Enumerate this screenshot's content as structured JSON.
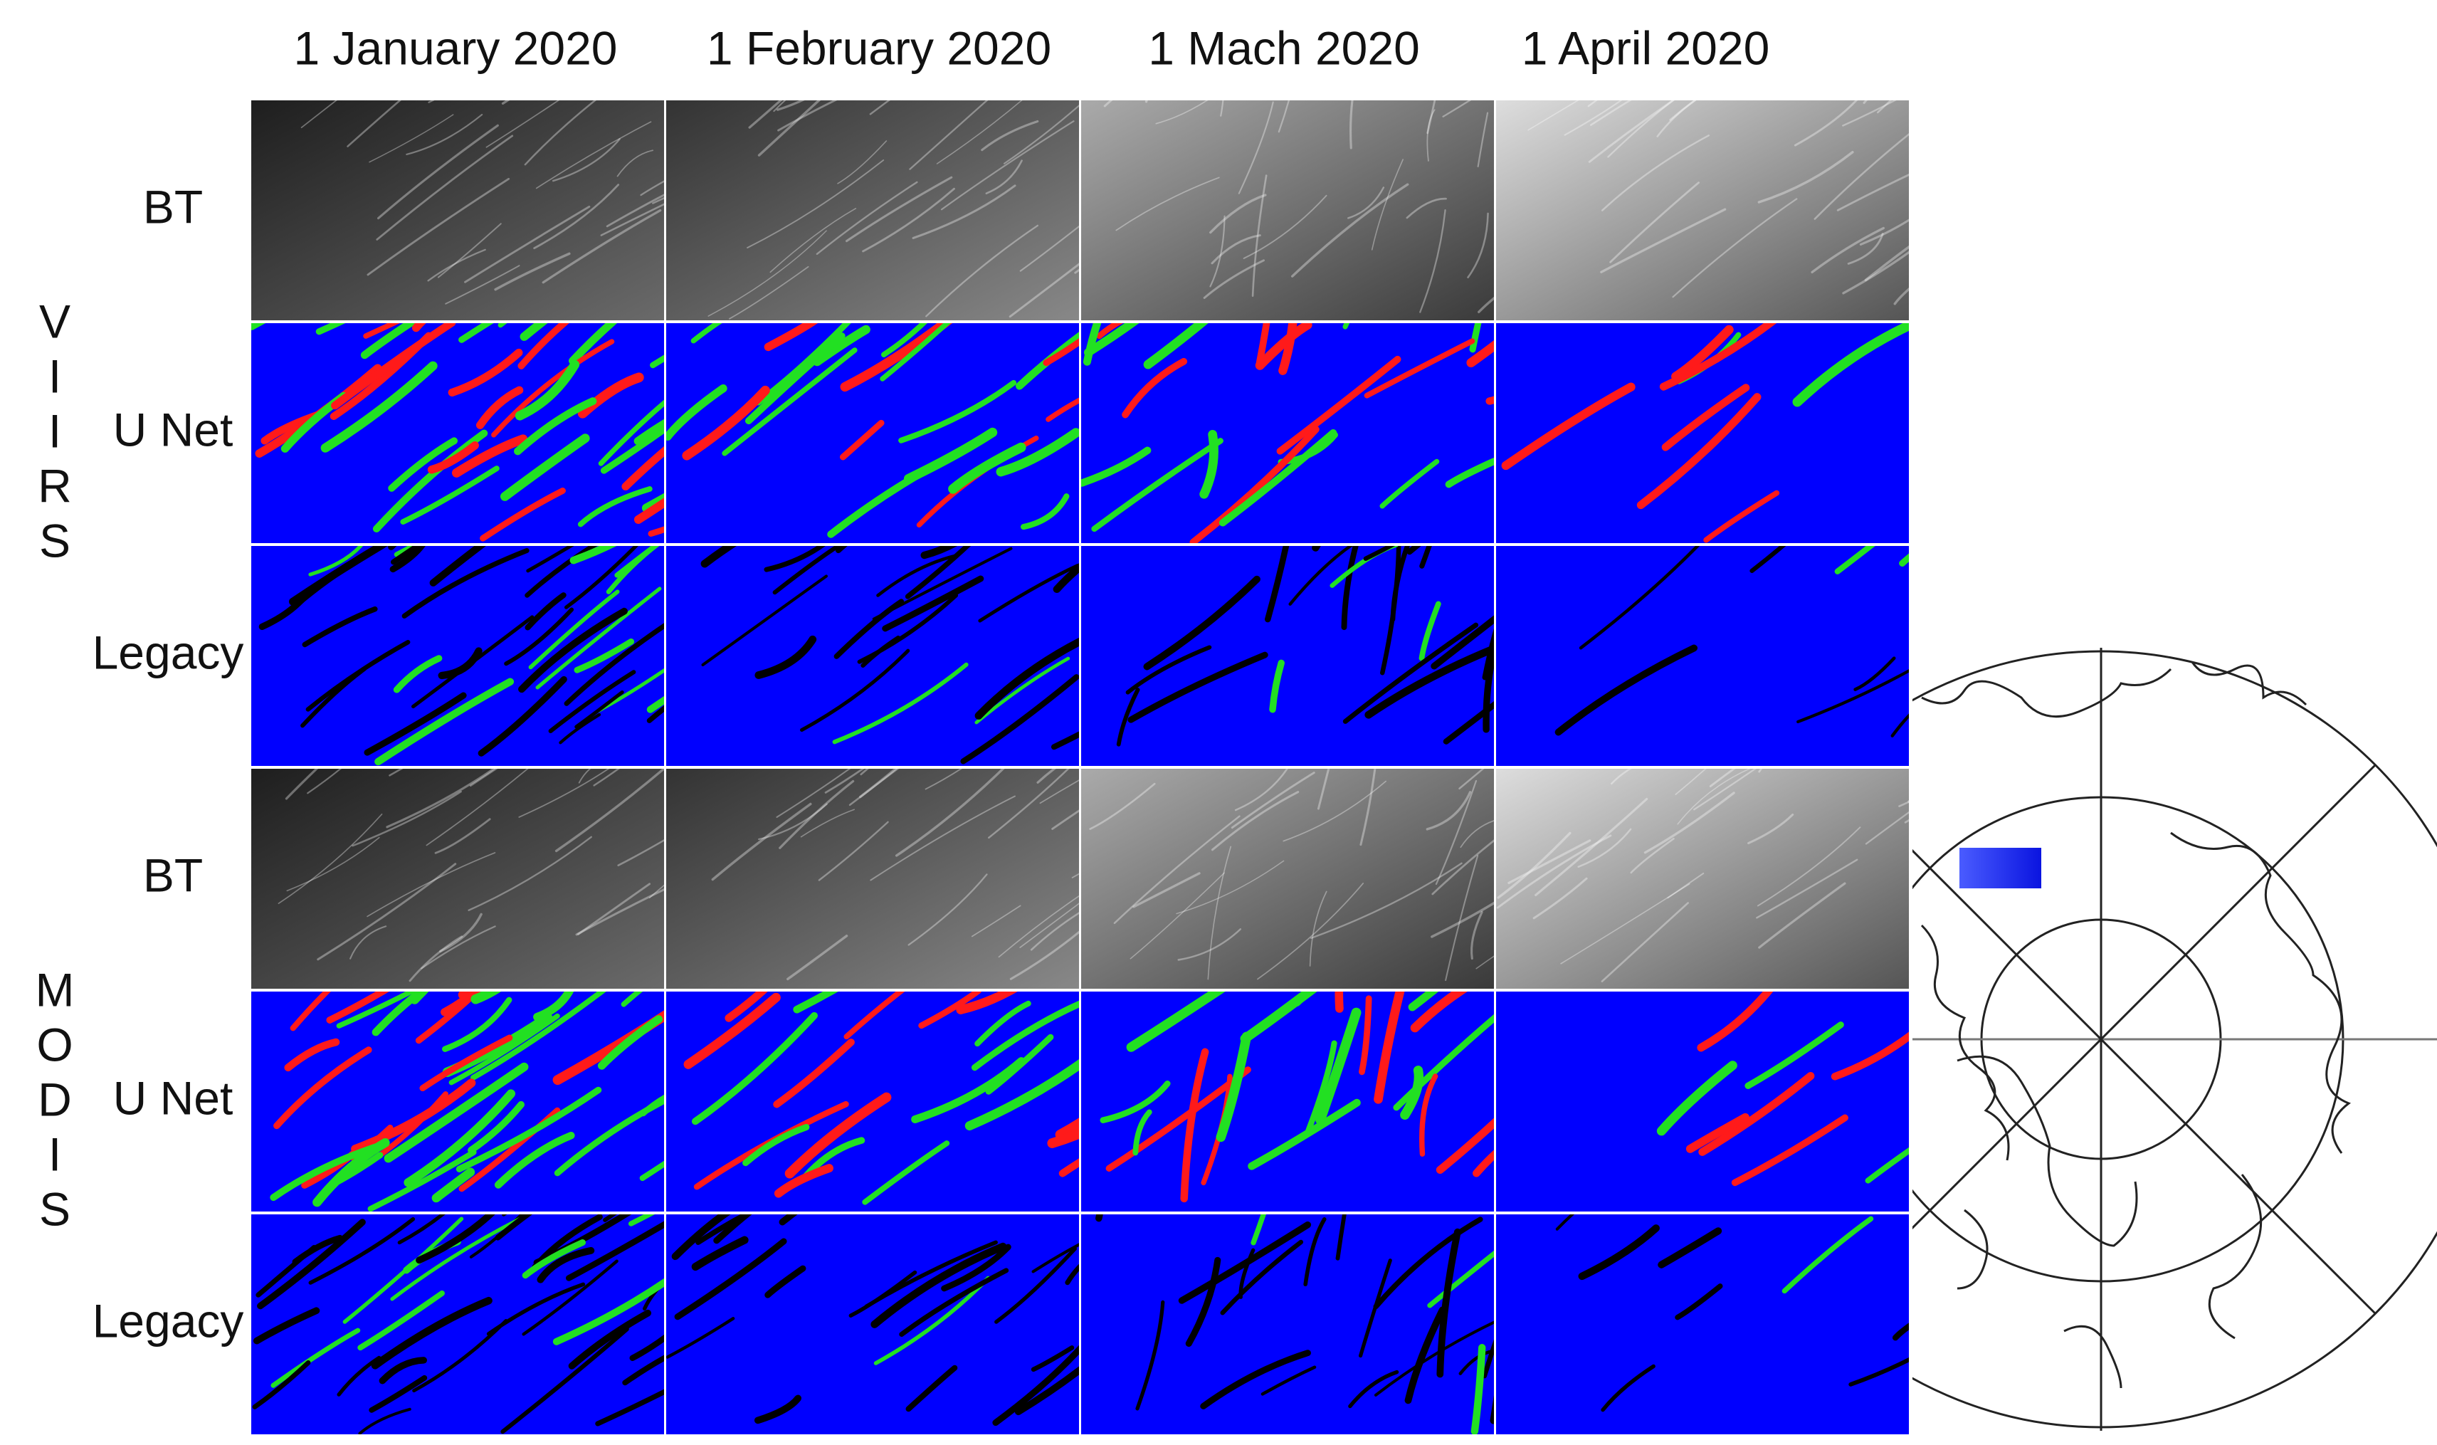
{
  "column_headers": [
    "1 January 2020",
    "1 February 2020",
    "1 Mach 2020",
    "1 April 2020"
  ],
  "sensors": [
    {
      "letters": [
        "V",
        "I",
        "I",
        "R",
        "S"
      ],
      "rows": [
        "BT",
        "U Net",
        "Legacy"
      ]
    },
    {
      "letters": [
        "M",
        "O",
        "D",
        "I",
        "S"
      ],
      "rows": [
        "BT",
        "U Net",
        "Legacy"
      ]
    }
  ]
}
